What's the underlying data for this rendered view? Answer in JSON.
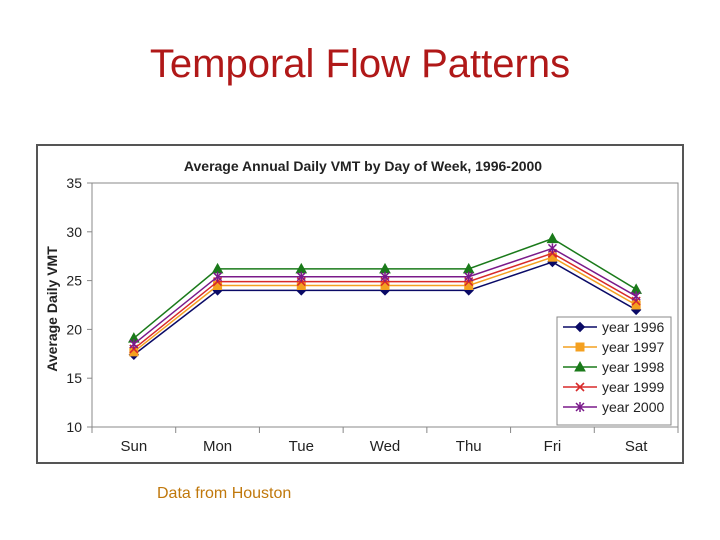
{
  "slide": {
    "title": "Temporal Flow Patterns",
    "source_note": "Data from Houston"
  },
  "colors": {
    "title": "#b01818",
    "note": "#c0780c",
    "frame": "#555555",
    "grid": "#888888"
  },
  "chart_data": {
    "type": "line",
    "title": "Average Annual Daily VMT by Day of Week, 1996-2000",
    "xlabel": "",
    "ylabel": "Average Daily VMT",
    "categories": [
      "Sun",
      "Mon",
      "Tue",
      "Wed",
      "Thu",
      "Fri",
      "Sat"
    ],
    "ylim": [
      10,
      35
    ],
    "yticks": [
      10,
      15,
      20,
      25,
      30,
      35
    ],
    "grid": false,
    "legend": "right",
    "series": [
      {
        "name": "year 1996",
        "color": "#0a0a66",
        "marker": "diamond",
        "values": [
          17.4,
          24.0,
          24.0,
          24.0,
          24.0,
          26.9,
          22.0
        ]
      },
      {
        "name": "year 1997",
        "color": "#f4a020",
        "marker": "square",
        "values": [
          17.7,
          24.5,
          24.5,
          24.5,
          24.5,
          27.4,
          22.5
        ]
      },
      {
        "name": "year 1998",
        "color": "#1a7a1a",
        "marker": "triangle",
        "values": [
          19.1,
          26.2,
          26.2,
          26.2,
          26.2,
          29.3,
          24.1
        ]
      },
      {
        "name": "year 1999",
        "color": "#d82a2a",
        "marker": "x",
        "values": [
          18.0,
          24.9,
          24.9,
          24.9,
          24.9,
          27.8,
          22.9
        ]
      },
      {
        "name": "year 2000",
        "color": "#7a1a8a",
        "marker": "star",
        "values": [
          18.5,
          25.4,
          25.4,
          25.4,
          25.4,
          28.3,
          23.4
        ]
      }
    ]
  }
}
